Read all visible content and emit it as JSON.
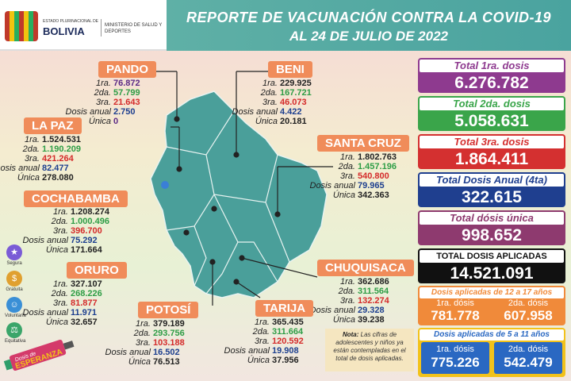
{
  "header": {
    "logo_small": "ESTADO PLURINACIONAL DE",
    "logo_country": "BOLIVIA",
    "logo_ministry": "MINISTERIO DE SALUD Y DEPORTES",
    "title": "REPORTE DE VACUNACIÓN CONTRA LA COVID-19",
    "subtitle": "AL 24 DE JULIO DE 2022"
  },
  "labels": {
    "d1": "1ra.",
    "d2": "2da.",
    "d3": "3ra.",
    "anual": "Dosis anual",
    "unica": "Única"
  },
  "departments": {
    "pando": {
      "name": "PANDO",
      "d1": "76.872",
      "d2": "57.799",
      "d3": "21.643",
      "anual": "2.750",
      "unica": "0"
    },
    "beni": {
      "name": "BENI",
      "d1": "229.925",
      "d2": "167.721",
      "d3": "46.073",
      "anual": "4.422",
      "unica": "20.181"
    },
    "lapaz": {
      "name": "LA PAZ",
      "d1": "1.524.531",
      "d2": "1.190.209",
      "d3": "421.264",
      "anual": "82.477",
      "unica": "278.080"
    },
    "santacruz": {
      "name": "SANTA CRUZ",
      "d1": "1.802.763",
      "d2": "1.457.196",
      "d3": "540.800",
      "anual": "79.965",
      "unica": "342.363"
    },
    "cochabamba": {
      "name": "COCHABAMBA",
      "d1": "1.208.274",
      "d2": "1.000.496",
      "d3": "396.700",
      "anual": "75.292",
      "unica": "171.664"
    },
    "oruro": {
      "name": "ORURO",
      "d1": "327.107",
      "d2": "268.226",
      "d3": "81.877",
      "anual": "11.971",
      "unica": "32.657"
    },
    "chuquisaca": {
      "name": "CHUQUISACA",
      "d1": "362.686",
      "d2": "311.564",
      "d3": "132.274",
      "anual": "29.328",
      "unica": "39.238"
    },
    "potosi": {
      "name": "POTOSÍ",
      "d1": "379.189",
      "d2": "293.756",
      "d3": "103.188",
      "anual": "16.502",
      "unica": "76.513"
    },
    "tarija": {
      "name": "TARIJA",
      "d1": "365.435",
      "d2": "311.664",
      "d3": "120.592",
      "anual": "19.908",
      "unica": "37.956"
    }
  },
  "totals": {
    "first": {
      "label": "Total 1ra. dosis",
      "value": "6.276.782",
      "color": "#8e3a8f"
    },
    "second": {
      "label": "Total 2da. dosis",
      "value": "5.058.631",
      "color": "#3aa54a"
    },
    "third": {
      "label": "Total 3ra. dosis",
      "value": "1.864.411",
      "color": "#d43030"
    },
    "annual": {
      "label": "Total Dosis Anual (4ta)",
      "value": "322.615",
      "color": "#1f3f8f"
    },
    "unique": {
      "label": "Total dósis única",
      "value": "998.652",
      "color": "#8e3a6f"
    },
    "all": {
      "label": "TOTAL DOSIS APLICADAS",
      "value": "14.521.091",
      "color": "#111111"
    }
  },
  "age_12_17": {
    "title": "Dosis aplicadas de 12 a 17 años",
    "first_label": "1ra. dósis",
    "first_value": "781.778",
    "second_label": "2da. dósis",
    "second_value": "607.958",
    "color": "#f08a3a"
  },
  "age_5_11": {
    "title": "Dosis aplicadas de 5 a 11 años",
    "first_label": "1ra. dósis",
    "first_value": "775.226",
    "second_label": "2da. dósis",
    "second_value": "542.479",
    "color": "#2a68c2",
    "border": "#f2c21a"
  },
  "side_icons": [
    {
      "icon": "shield-icon",
      "caption": "Segura",
      "color": "#7a5bd6"
    },
    {
      "icon": "coin-icon",
      "caption": "Gratuita",
      "color": "#e0a030"
    },
    {
      "icon": "person-icon",
      "caption": "Voluntaria",
      "color": "#3a8fd6"
    },
    {
      "icon": "scales-icon",
      "caption": "Equitativa",
      "color": "#3aa56a"
    }
  ],
  "badge": {
    "line1": "Dosis de",
    "line2": "ESPERANZA"
  },
  "note": {
    "bold": "Nota:",
    "text": "Las cifras de adolescentes y niños ya están contempladas en el total de dosis aplicadas."
  }
}
